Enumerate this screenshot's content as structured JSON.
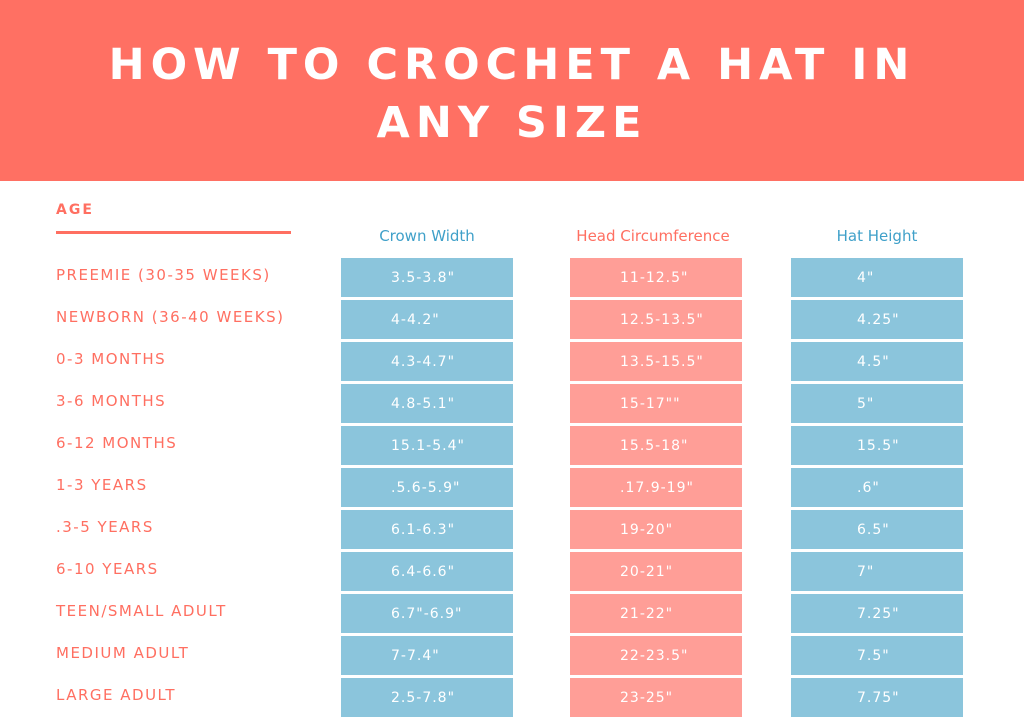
{
  "title": "HOW TO CROCHET A HAT IN ANY SIZE",
  "age_header": "AGE",
  "columns": {
    "crown_width": "Crown Width",
    "head_circumference": "Head Circumference",
    "hat_height": "Hat Height"
  },
  "colors": {
    "banner": "#ff7063",
    "accent_text": "#ff6f61",
    "blue_header": "#3fa0c9",
    "blue_cell": "#8bc5dc",
    "pink_cell": "#ff9e97"
  },
  "rows": [
    {
      "age": "PREEMIE (30-35 WEEKS)",
      "crown": "3.5-3.8\"",
      "circ": "11-12.5\"",
      "height": "4\""
    },
    {
      "age": "NEWBORN (36-40 WEEKS)",
      "crown": "4-4.2\"",
      "circ": "12.5-13.5\"",
      "height": "4.25\""
    },
    {
      "age": "0-3 MONTHS",
      "crown": "4.3-4.7\"",
      "circ": "13.5-15.5\"",
      "height": "4.5\""
    },
    {
      "age": "3-6 MONTHS",
      "crown": "4.8-5.1\"",
      "circ": "15-17\"\"",
      "height": "5\""
    },
    {
      "age": "6-12 MONTHS",
      "crown": "15.1-5.4\"",
      "circ": "15.5-18\"",
      "height": "15.5\""
    },
    {
      "age": "1-3 YEARS",
      "crown": ".5.6-5.9\"",
      "circ": ".17.9-19\"",
      "height": ".6\""
    },
    {
      "age": ".3-5 YEARS",
      "crown": "6.1-6.3\"",
      "circ": "19-20\"",
      "height": "6.5\""
    },
    {
      "age": "6-10 YEARS",
      "crown": "6.4-6.6\"",
      "circ": "20-21\"",
      "height": "7\""
    },
    {
      "age": "TEEN/SMALL ADULT",
      "crown": "6.7\"-6.9\"",
      "circ": "21-22\"",
      "height": "7.25\""
    },
    {
      "age": "MEDIUM ADULT",
      "crown": "7-7.4\"",
      "circ": "22-23.5\"",
      "height": "7.5\""
    },
    {
      "age": "LARGE ADULT",
      "crown": "2.5-7.8\"",
      "circ": "23-25\"",
      "height": "7.75\""
    }
  ]
}
